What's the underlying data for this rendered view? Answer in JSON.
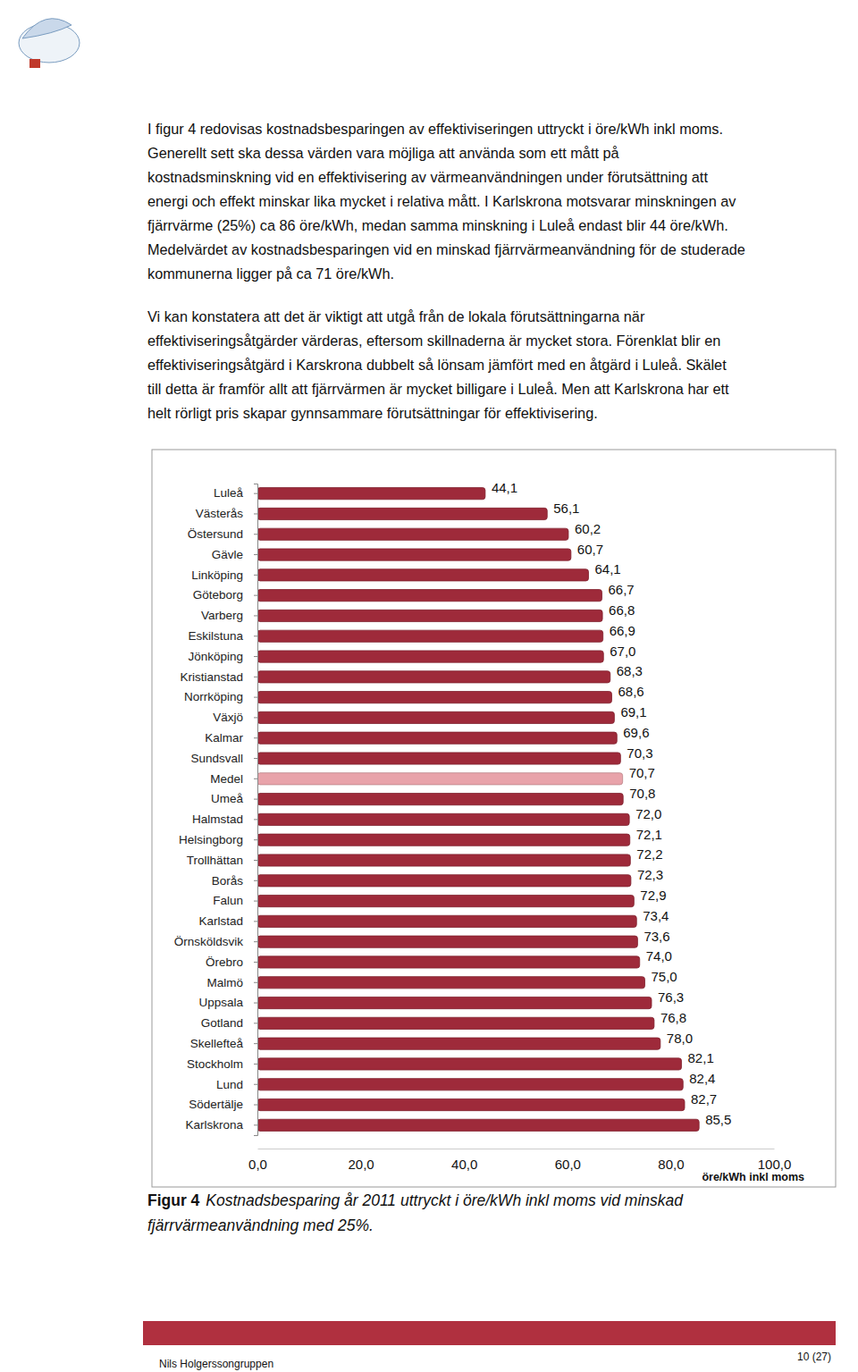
{
  "document": {
    "paragraphs": [
      [
        "I figur 4 redovisas kostnadsbesparingen av effektiviseringen uttryckt i öre/kWh inkl moms.",
        "Generellt sett ska dessa värden vara möjliga att använda som ett mått på",
        "kostnadsminskning vid en effektivisering av värmeanvändningen under förutsättning att",
        "energi och effekt minskar lika mycket i relativa mått. I Karlskrona motsvarar minskningen av",
        "fjärrvärme (25%) ca 86 öre/kWh, medan samma minskning i Luleå endast blir 44 öre/kWh.",
        "Medelvärdet av kostnadsbesparingen vid en minskad fjärrvärmeanvändning för de studerade",
        "kommunerna ligger på ca 71 öre/kWh."
      ],
      [
        "Vi kan konstatera att det är viktigt att utgå från de lokala förutsättningarna när",
        "effektiviseringsåtgärder värderas, eftersom skillnaderna är mycket stora. Förenklat blir en",
        "effektiviseringsåtgärd i Karskrona dubbelt så lönsam jämfört med en åtgärd i Luleå. Skälet",
        "till detta är framför allt att fjärrvärmen är mycket billigare i Luleå. Men att Karlskrona har ett",
        "helt rörligt pris skapar gynnsammare förutsättningar för effektivisering."
      ]
    ],
    "caption": {
      "label": "Figur 4",
      "lines": [
        "Kostnadsbesparing år 2011 uttryckt i öre/kWh inkl moms vid minskad",
        "fjärrvärmeanvändning med 25%."
      ]
    },
    "footer": {
      "left": "Nils Holgerssongruppen",
      "right": "10 (27)"
    }
  },
  "chart_data": {
    "type": "bar",
    "orientation": "horizontal",
    "categories": [
      "Luleå",
      "Västerås",
      "Östersund",
      "Gävle",
      "Linköping",
      "Göteborg",
      "Varberg",
      "Eskilstuna",
      "Jönköping",
      "Kristianstad",
      "Norrköping",
      "Växjö",
      "Kalmar",
      "Sundsvall",
      "Medel",
      "Umeå",
      "Halmstad",
      "Helsingborg",
      "Trollhättan",
      "Borås",
      "Falun",
      "Karlstad",
      "Örnsköldsvik",
      "Örebro",
      "Malmö",
      "Uppsala",
      "Gotland",
      "Skellefteå",
      "Stockholm",
      "Lund",
      "Södertälje",
      "Karlskrona"
    ],
    "values": [
      44.1,
      56.1,
      60.2,
      60.7,
      64.1,
      66.7,
      66.8,
      66.9,
      67.0,
      68.3,
      68.6,
      69.1,
      69.6,
      70.3,
      70.7,
      70.8,
      72.0,
      72.1,
      72.2,
      72.3,
      72.9,
      73.4,
      73.6,
      74.0,
      75.0,
      76.3,
      76.8,
      78.0,
      82.1,
      82.4,
      82.7,
      85.5
    ],
    "value_labels": [
      "44,1",
      "56,1",
      "60,2",
      "60,7",
      "64,1",
      "66,7",
      "66,8",
      "66,9",
      "67,0",
      "68,3",
      "68,6",
      "69,1",
      "69,6",
      "70,3",
      "70,7",
      "70,8",
      "72,0",
      "72,1",
      "72,2",
      "72,3",
      "72,9",
      "73,4",
      "73,6",
      "74,0",
      "75,0",
      "76,3",
      "76,8",
      "78,0",
      "82,1",
      "82,4",
      "82,7",
      "85,5"
    ],
    "colors": [
      "#9e2a3a",
      "#9e2a3a",
      "#9e2a3a",
      "#9e2a3a",
      "#9e2a3a",
      "#9e2a3a",
      "#9e2a3a",
      "#9e2a3a",
      "#9e2a3a",
      "#9e2a3a",
      "#9e2a3a",
      "#9e2a3a",
      "#9e2a3a",
      "#9e2a3a",
      "#e8a3aa",
      "#9e2a3a",
      "#9e2a3a",
      "#9e2a3a",
      "#9e2a3a",
      "#9e2a3a",
      "#9e2a3a",
      "#9e2a3a",
      "#9e2a3a",
      "#9e2a3a",
      "#9e2a3a",
      "#9e2a3a",
      "#9e2a3a",
      "#9e2a3a",
      "#9e2a3a",
      "#9e2a3a",
      "#9e2a3a",
      "#9e2a3a"
    ],
    "data_labels": true,
    "x_label": "öre/kWh inkl moms",
    "xlim": [
      0,
      100
    ],
    "xticks": [
      {
        "value": 0,
        "label": "0,0"
      },
      {
        "value": 20,
        "label": "20,0"
      },
      {
        "value": 40,
        "label": "40,0"
      },
      {
        "value": 60,
        "label": "60,0"
      },
      {
        "value": 80,
        "label": "80,0"
      },
      {
        "value": 100,
        "label": "100,0"
      }
    ]
  }
}
